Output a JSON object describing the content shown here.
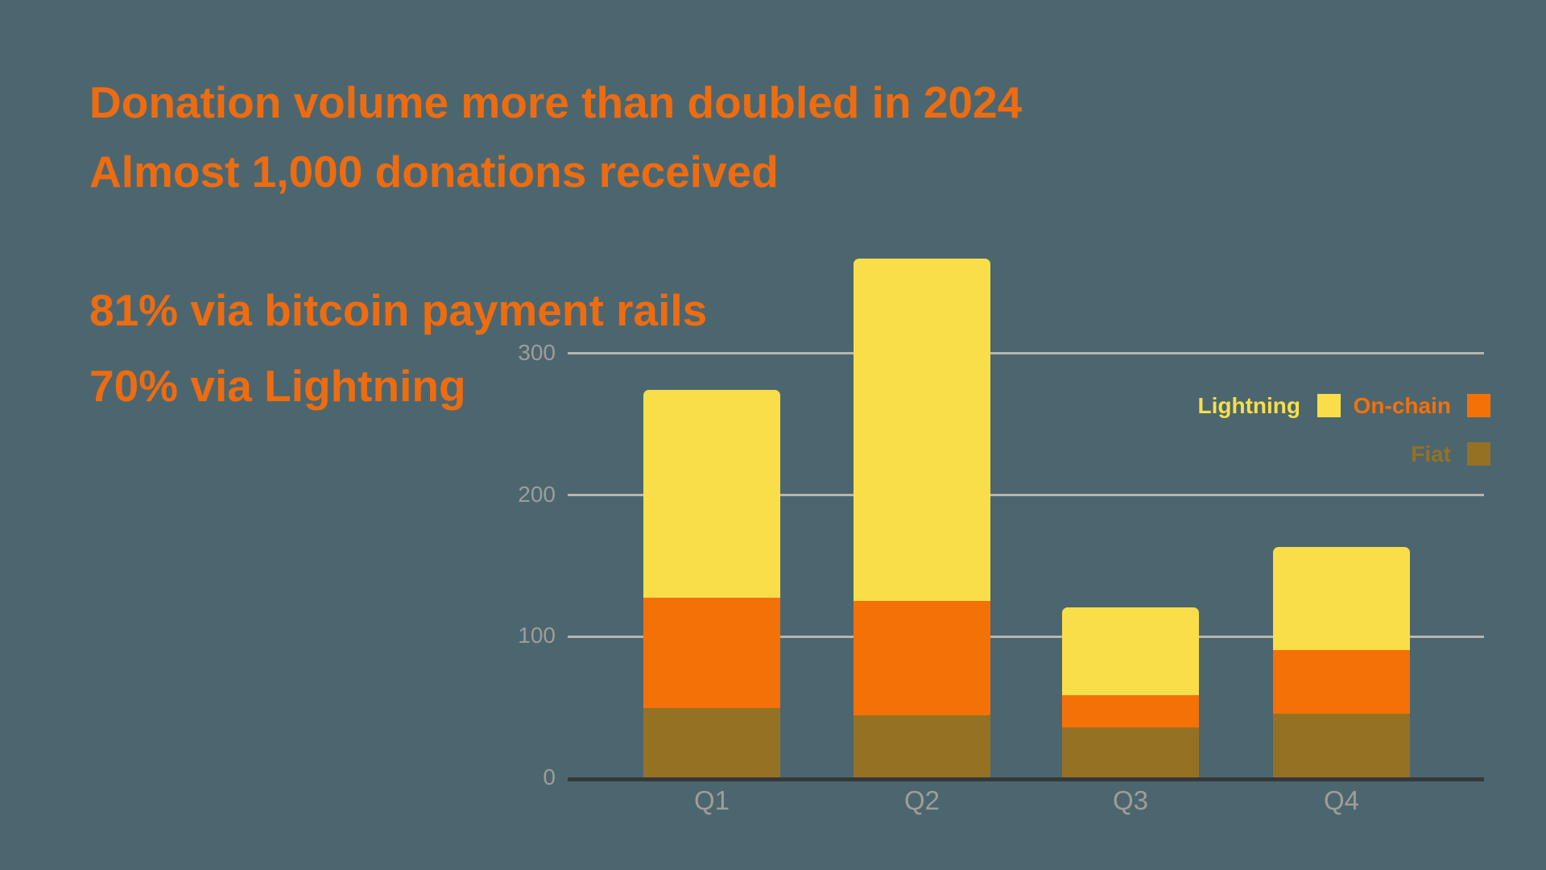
{
  "background_color": "#4c6670",
  "headline": {
    "color": "#ee6c10",
    "line1": "Donation volume more than doubled in 2024",
    "line2": "Almost 1,000 donations received",
    "line3": "81% via bitcoin payment rails",
    "line4": "70% via Lightning"
  },
  "chart_data": {
    "type": "bar",
    "stacked": true,
    "title": "",
    "xlabel": "",
    "ylabel": "",
    "categories": [
      "Q1",
      "Q2",
      "Q3",
      "Q4"
    ],
    "series": [
      {
        "name": "Lightning",
        "color": "#f9de49",
        "values": [
          147,
          242,
          62,
          73
        ]
      },
      {
        "name": "On-chain",
        "color": "#f47108",
        "values": [
          78,
          81,
          23,
          45
        ]
      },
      {
        "name": "Fiat",
        "color": "#957124",
        "values": [
          49,
          44,
          35,
          45
        ]
      }
    ],
    "stack_totals": [
      274,
      367,
      120,
      163
    ],
    "y_ticks": [
      0,
      100,
      200,
      300
    ],
    "ylim": [
      0,
      380
    ],
    "grid": true,
    "legend_position": "right",
    "colors": {
      "axis_text": "#a09c97",
      "gridline": "#b9b5ae",
      "axis_line": "#35383a"
    }
  }
}
